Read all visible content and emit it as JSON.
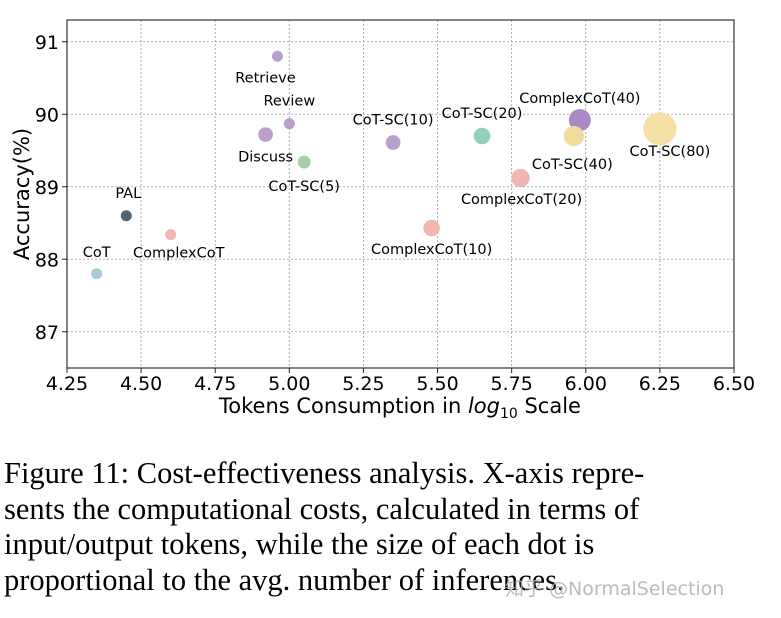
{
  "chart_data": {
    "type": "scatter",
    "title": "",
    "xlabel_prefix": "Tokens Consumption in ",
    "xlabel_log": "log",
    "xlabel_sub": "10",
    "xlabel_suffix": " Scale",
    "ylabel": "Accuracy(%)",
    "xlim": [
      4.25,
      6.5
    ],
    "ylim": [
      86.5,
      91.3
    ],
    "xticks": [
      4.25,
      4.5,
      4.75,
      5.0,
      5.25,
      5.5,
      5.75,
      6.0,
      6.25,
      6.5
    ],
    "xtick_labels": [
      "4.25",
      "4.50",
      "4.75",
      "5.00",
      "5.25",
      "5.50",
      "5.75",
      "6.00",
      "6.25",
      "6.50"
    ],
    "yticks": [
      87,
      88,
      89,
      90,
      91
    ],
    "ytick_labels": [
      "87",
      "88",
      "89",
      "90",
      "91"
    ],
    "grid": true,
    "points": [
      {
        "label": "CoT",
        "x": 4.35,
        "y": 87.8,
        "color": "#a6cdd4",
        "size": 6
      },
      {
        "label": "PAL",
        "x": 4.45,
        "y": 88.6,
        "color": "#4f6475",
        "size": 6
      },
      {
        "label": "ComplexCoT",
        "x": 4.6,
        "y": 88.34,
        "color": "#f0b7b2",
        "size": 6
      },
      {
        "label": "Retrieve",
        "x": 4.96,
        "y": 90.8,
        "color": "#b9a1cc",
        "size": 6
      },
      {
        "label": "Review",
        "x": 5.0,
        "y": 89.87,
        "color": "#b9a1cc",
        "size": 6
      },
      {
        "label": "Discuss",
        "x": 4.92,
        "y": 89.72,
        "color": "#b9a1cc",
        "size": 8
      },
      {
        "label": "CoT-SC(5)",
        "x": 5.05,
        "y": 89.34,
        "color": "#a5cfa6",
        "size": 7
      },
      {
        "label": "CoT-SC(10)",
        "x": 5.35,
        "y": 89.61,
        "color": "#b9a1cc",
        "size": 8
      },
      {
        "label": "CoT-SC(20)",
        "x": 5.65,
        "y": 89.7,
        "color": "#90d0bd",
        "size": 9
      },
      {
        "label": "ComplexCoT(10)",
        "x": 5.48,
        "y": 88.43,
        "color": "#f0b7b2",
        "size": 9
      },
      {
        "label": "ComplexCoT(20)",
        "x": 5.78,
        "y": 89.12,
        "color": "#f0b7b2",
        "size": 10
      },
      {
        "label": "ComplexCoT(40)",
        "x": 5.98,
        "y": 89.92,
        "color": "#a98ac4",
        "size": 12
      },
      {
        "label": "CoT-SC(40)",
        "x": 5.96,
        "y": 89.7,
        "color": "#f2db9b",
        "size": 11
      },
      {
        "label": "CoT-SC(80)",
        "x": 6.25,
        "y": 89.8,
        "color": "#f5e1a5",
        "size": 18
      }
    ]
  },
  "caption": {
    "lines": [
      "Figure 11: Cost-effectiveness analysis. X-axis repre-",
      "sents the computational costs, calculated in terms of",
      "input/output tokens, while the size of each dot is",
      "proportional to the avg. number of inferences."
    ]
  },
  "watermark": "知乎 @NormalSelection"
}
